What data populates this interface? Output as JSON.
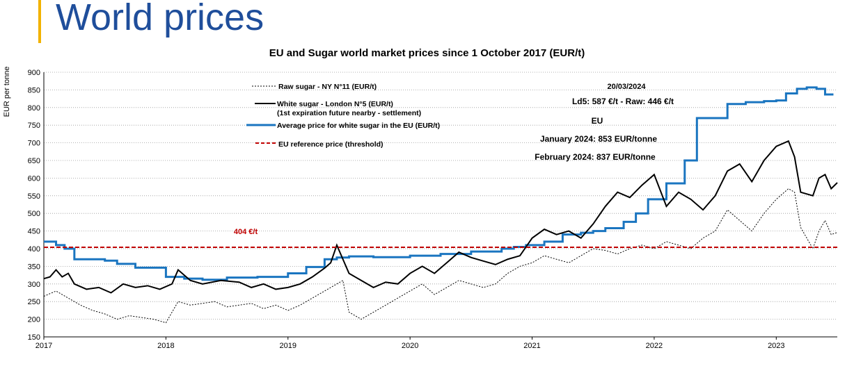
{
  "page": {
    "title": "World prices"
  },
  "colors": {
    "accent": "#f2b200",
    "title": "#1f4e9b",
    "blue": "#1a75c0",
    "red": "#c00000",
    "black": "#000000"
  },
  "chart_data": {
    "type": "line",
    "title": "EU and Sugar world market prices since 1 October 2017 (EUR/t)",
    "xlabel": "",
    "ylabel": "EUR per tonne",
    "ylim": [
      150,
      900
    ],
    "yticks": [
      150,
      200,
      250,
      300,
      350,
      400,
      450,
      500,
      550,
      600,
      650,
      700,
      750,
      800,
      850,
      900
    ],
    "xlim": [
      2017.0,
      2023.5
    ],
    "xticks": [
      "2017",
      "2018",
      "2019",
      "2020",
      "2021",
      "2022",
      "2023"
    ],
    "legend": {
      "raw": "Raw sugar - NY N°11 (EUR/t)",
      "white": "White sugar - London N°5 (EUR/t)",
      "white_note": "(1st expiration future nearby - settlement)",
      "eu": "Average price for white sugar in the EU (EUR/t)",
      "ref": "EU reference price  (threshold)"
    },
    "annotations": {
      "date": "20/03/2024",
      "ld5": "Ld5: 587 €/t - Raw: 446 €/t",
      "eu_heading": "EU",
      "jan": "January 2024: 853 EUR/tonne",
      "feb": "February 2024: 837 EUR/tonne",
      "ref_label": "404 €/t"
    },
    "series": [
      {
        "name": "Average price for white sugar in the EU (EUR/t)",
        "style": "step",
        "x": [
          2017.0,
          2017.1,
          2017.17,
          2017.25,
          2017.5,
          2017.6,
          2017.75,
          2018.0,
          2018.15,
          2018.3,
          2018.5,
          2018.75,
          2019.0,
          2019.15,
          2019.3,
          2019.4,
          2019.5,
          2019.7,
          2020.0,
          2020.25,
          2020.5,
          2020.75,
          2020.85,
          2020.95,
          2021.1,
          2021.25,
          2021.4,
          2021.5,
          2021.6,
          2021.75,
          2021.85,
          2021.95,
          2022.1,
          2022.25,
          2022.35,
          2022.6,
          2022.75,
          2022.9,
          2023.0,
          2023.08,
          2023.17,
          2023.25,
          2023.33,
          2023.4
        ],
        "values": [
          420,
          410,
          400,
          370,
          366,
          357,
          346,
          320,
          315,
          312,
          318,
          320,
          330,
          348,
          370,
          375,
          378,
          376,
          380,
          385,
          392,
          400,
          405,
          410,
          420,
          440,
          445,
          450,
          458,
          476,
          500,
          540,
          585,
          650,
          770,
          810,
          815,
          818,
          820,
          840,
          853,
          857,
          853,
          837
        ]
      },
      {
        "name": "White sugar - London N°5 (EUR/t)",
        "style": "line",
        "x": [
          2017.0,
          2017.05,
          2017.1,
          2017.15,
          2017.2,
          2017.25,
          2017.35,
          2017.45,
          2017.55,
          2017.65,
          2017.75,
          2017.85,
          2017.95,
          2018.05,
          2018.1,
          2018.2,
          2018.3,
          2018.45,
          2018.6,
          2018.7,
          2018.8,
          2018.9,
          2019.0,
          2019.1,
          2019.2,
          2019.3,
          2019.35,
          2019.4,
          2019.45,
          2019.5,
          2019.6,
          2019.7,
          2019.8,
          2019.9,
          2020.0,
          2020.1,
          2020.2,
          2020.3,
          2020.4,
          2020.5,
          2020.6,
          2020.7,
          2020.8,
          2020.9,
          2021.0,
          2021.1,
          2021.2,
          2021.3,
          2021.4,
          2021.5,
          2021.6,
          2021.7,
          2021.8,
          2021.9,
          2022.0,
          2022.1,
          2022.2,
          2022.3,
          2022.4,
          2022.5,
          2022.6,
          2022.7,
          2022.8,
          2022.9,
          2023.0,
          2023.1,
          2023.15,
          2023.2,
          2023.3,
          2023.35,
          2023.4,
          2023.45,
          2023.5
        ],
        "values": [
          315,
          320,
          340,
          320,
          330,
          300,
          285,
          290,
          275,
          300,
          290,
          295,
          285,
          300,
          340,
          310,
          300,
          310,
          305,
          290,
          300,
          285,
          290,
          300,
          320,
          345,
          360,
          410,
          370,
          330,
          310,
          290,
          305,
          300,
          330,
          350,
          330,
          360,
          390,
          375,
          365,
          355,
          370,
          380,
          430,
          455,
          440,
          450,
          430,
          470,
          520,
          560,
          545,
          580,
          610,
          520,
          560,
          540,
          510,
          550,
          620,
          640,
          590,
          650,
          690,
          705,
          660,
          560,
          550,
          600,
          610,
          570,
          587
        ]
      },
      {
        "name": "Raw sugar - NY N°11 (EUR/t)",
        "style": "dashed",
        "x": [
          2017.0,
          2017.1,
          2017.2,
          2017.3,
          2017.4,
          2017.5,
          2017.6,
          2017.7,
          2017.8,
          2017.9,
          2018.0,
          2018.1,
          2018.2,
          2018.3,
          2018.4,
          2018.5,
          2018.6,
          2018.7,
          2018.8,
          2018.9,
          2019.0,
          2019.1,
          2019.2,
          2019.3,
          2019.4,
          2019.45,
          2019.5,
          2019.6,
          2019.7,
          2019.8,
          2019.9,
          2020.0,
          2020.1,
          2020.2,
          2020.3,
          2020.4,
          2020.5,
          2020.6,
          2020.7,
          2020.8,
          2020.9,
          2021.0,
          2021.1,
          2021.2,
          2021.3,
          2021.4,
          2021.5,
          2021.6,
          2021.7,
          2021.8,
          2021.9,
          2022.0,
          2022.1,
          2022.2,
          2022.3,
          2022.4,
          2022.5,
          2022.6,
          2022.7,
          2022.8,
          2022.9,
          2023.0,
          2023.1,
          2023.15,
          2023.2,
          2023.3,
          2023.35,
          2023.4,
          2023.45,
          2023.5
        ],
        "values": [
          265,
          280,
          260,
          240,
          225,
          215,
          200,
          210,
          205,
          200,
          190,
          250,
          240,
          245,
          250,
          235,
          240,
          245,
          230,
          240,
          225,
          240,
          260,
          280,
          300,
          310,
          220,
          200,
          220,
          240,
          260,
          280,
          300,
          270,
          290,
          310,
          300,
          290,
          300,
          330,
          350,
          360,
          380,
          370,
          360,
          380,
          400,
          395,
          385,
          400,
          410,
          400,
          420,
          410,
          400,
          430,
          450,
          510,
          480,
          450,
          500,
          540,
          570,
          560,
          460,
          400,
          450,
          480,
          440,
          446
        ]
      },
      {
        "name": "EU reference price  (threshold)",
        "style": "reference",
        "x": [
          2017.0,
          2023.5
        ],
        "values": [
          404,
          404
        ]
      }
    ]
  }
}
